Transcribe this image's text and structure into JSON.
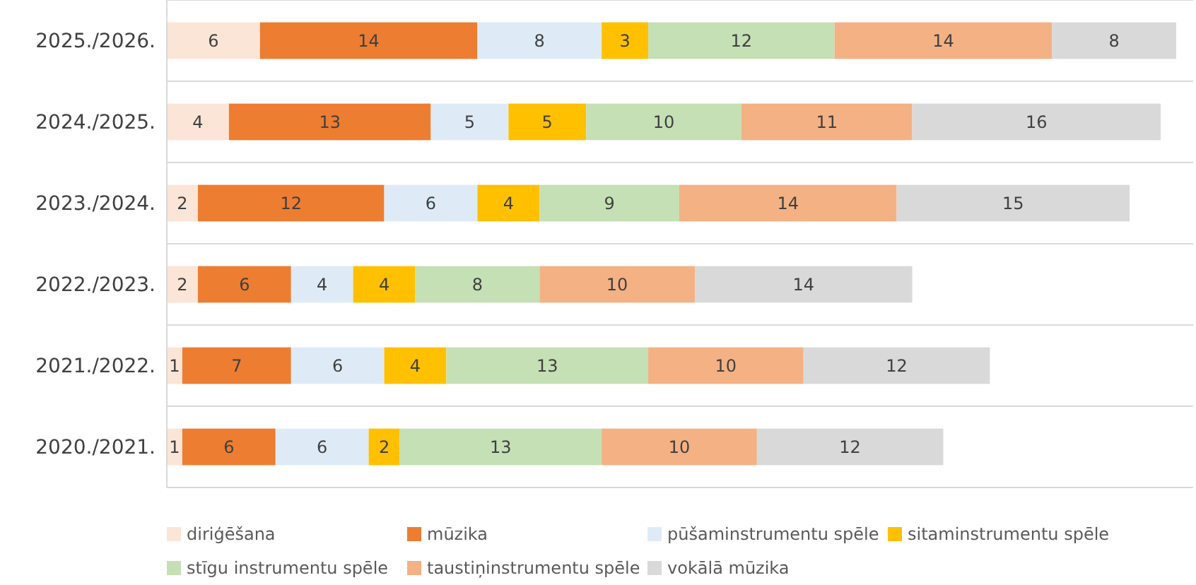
{
  "chart_data": {
    "type": "bar",
    "orientation": "horizontal",
    "stacked": true,
    "data_labels": true,
    "grid": true,
    "legend": "bottom",
    "categories": [
      "2025./2026.",
      "2024./2025.",
      "2023./2024.",
      "2022./2023.",
      "2021./2022.",
      "2020./2021."
    ],
    "series": [
      {
        "name": "diriģēšana",
        "color": "#fbe5d6",
        "values": [
          6,
          4,
          2,
          2,
          1,
          1
        ]
      },
      {
        "name": "mūzika",
        "color": "#ed7d31",
        "values": [
          14,
          13,
          12,
          6,
          7,
          6
        ]
      },
      {
        "name": "pūšaminstrumentu spēle",
        "color": "#deebf7",
        "values": [
          8,
          5,
          6,
          4,
          6,
          6
        ]
      },
      {
        "name": "sitaminstrumentu spēle",
        "color": "#ffc000",
        "values": [
          3,
          5,
          4,
          4,
          4,
          2
        ]
      },
      {
        "name": "stīgu instrumentu spēle",
        "color": "#c5e0b4",
        "values": [
          12,
          10,
          9,
          8,
          13,
          13
        ]
      },
      {
        "name": "taustiņinstrumentu spēle",
        "color": "#f4b183",
        "values": [
          14,
          11,
          14,
          10,
          10,
          10
        ]
      },
      {
        "name": "vokālā mūzika",
        "color": "#d9d9d9",
        "values": [
          8,
          16,
          15,
          14,
          12,
          12
        ]
      }
    ]
  }
}
